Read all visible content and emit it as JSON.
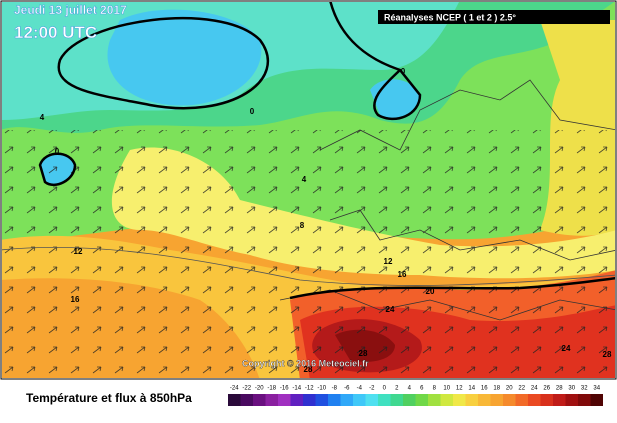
{
  "header": {
    "date": "Jeudi 13 juillet 2017",
    "time": "12:00 UTC",
    "source": "Réanalyses NCEP ( 1 et 2 ) 2.5°"
  },
  "map": {
    "copyright": "Copyright © 2016 Meteociel.fr",
    "contour_labels": [
      0,
      0,
      0,
      4,
      4,
      8,
      12,
      12,
      16,
      16,
      20,
      24,
      24,
      28,
      28,
      28
    ]
  },
  "legend": {
    "title": "Température et flux à 850hPa",
    "ticks": [
      -24,
      -22,
      -20,
      -18,
      -16,
      -14,
      -12,
      -10,
      -8,
      -6,
      -4,
      -2,
      0,
      2,
      4,
      6,
      8,
      10,
      12,
      14,
      16,
      18,
      20,
      22,
      24,
      26,
      28,
      30,
      32,
      34
    ]
  }
}
